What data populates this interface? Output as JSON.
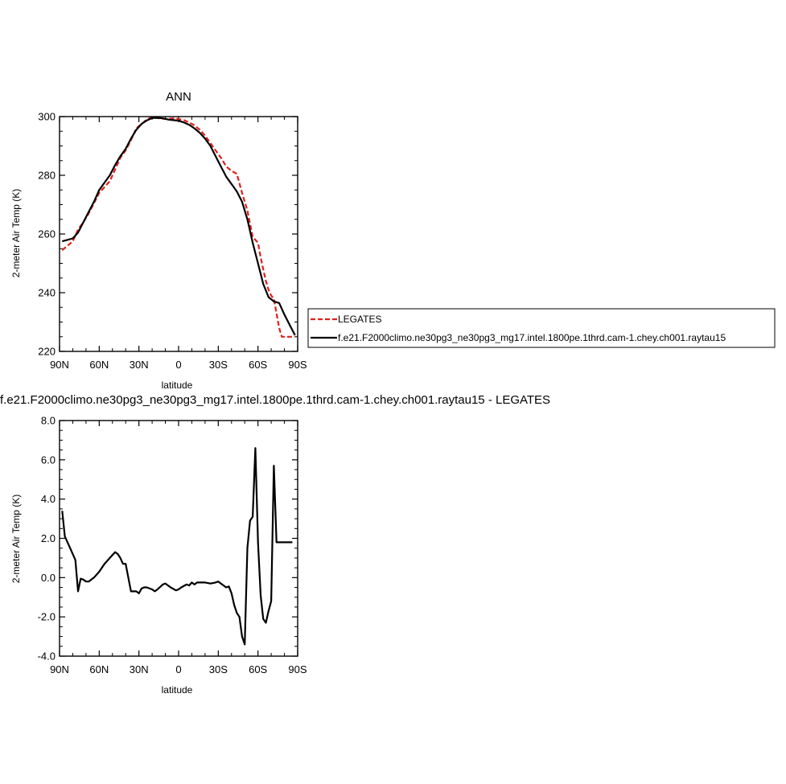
{
  "colors": {
    "obs": "#e0201b",
    "model": "#000000",
    "axis": "#000000"
  },
  "chart_data": [
    {
      "type": "line",
      "title": "ANN",
      "xlabel": "latitude",
      "ylabel": "2-meter Air Temp (K)",
      "xlim": [
        90,
        -90
      ],
      "ylim": [
        220,
        300
      ],
      "xticks": [
        90,
        60,
        30,
        0,
        -30,
        -60,
        -90
      ],
      "xtick_labels": [
        "90N",
        "60N",
        "30N",
        "0",
        "30S",
        "60S",
        "90S"
      ],
      "yticks": [
        220,
        240,
        260,
        280,
        300
      ],
      "ytick_labels": [
        "220",
        "240",
        "260",
        "280",
        "300"
      ],
      "legend": {
        "placement": "right",
        "entries": [
          "LEGATES",
          "f.e21.F2000climo.ne30pg3_ne30pg3_mg17.intel.1800pe.1thrd.cam-1.chey.ch001.raytau15"
        ]
      },
      "series": [
        {
          "name": "LEGATES",
          "style": "dashed",
          "color": "#e0201b",
          "x": [
            88,
            84,
            80,
            76,
            72,
            68,
            64,
            60,
            56,
            52,
            48,
            44,
            40,
            36,
            32,
            28,
            24,
            20,
            16,
            12,
            8,
            4,
            0,
            -4,
            -8,
            -12,
            -16,
            -20,
            -24,
            -28,
            -32,
            -36,
            -40,
            -44,
            -48,
            -52,
            -56,
            -60,
            -62,
            -64,
            -66,
            -68,
            -70,
            -72,
            -74,
            -76,
            -78,
            -80,
            -82,
            -84,
            -86,
            -88
          ],
          "y": [
            254.5,
            256.0,
            257.5,
            261.5,
            264.0,
            267.0,
            270.5,
            274.0,
            276.0,
            278.0,
            282.0,
            286.0,
            288.5,
            292.0,
            296.0,
            297.5,
            299.0,
            299.8,
            299.5,
            299.3,
            299.2,
            299.4,
            299.2,
            298.8,
            298.0,
            297.0,
            295.5,
            293.5,
            291.0,
            288.5,
            286.0,
            283.0,
            281.5,
            280.5,
            274.0,
            268.0,
            259.0,
            257.0,
            252.0,
            248.0,
            244.0,
            241.0,
            239.0,
            238.0,
            233.0,
            228.0,
            225.0,
            225.0,
            225.0,
            225.0,
            225.0,
            225.0
          ]
        },
        {
          "name": "f.e21.F2000climo.ne30pg3_ne30pg3_mg17.intel.1800pe.1thrd.cam-1.chey.ch001.raytau15",
          "style": "solid",
          "color": "#000000",
          "x": [
            88,
            84,
            80,
            76,
            72,
            68,
            64,
            60,
            56,
            52,
            48,
            44,
            40,
            36,
            32,
            28,
            24,
            20,
            16,
            12,
            8,
            4,
            0,
            -4,
            -8,
            -12,
            -16,
            -20,
            -24,
            -28,
            -32,
            -36,
            -40,
            -44,
            -48,
            -52,
            -56,
            -60,
            -64,
            -68,
            -72,
            -76,
            -80,
            -84,
            -88
          ],
          "y": [
            257.5,
            258.0,
            258.5,
            260.5,
            264.0,
            267.5,
            271.0,
            275.0,
            277.5,
            280.0,
            283.5,
            286.5,
            289.0,
            292.5,
            295.5,
            297.5,
            298.7,
            299.5,
            299.6,
            299.4,
            299.0,
            298.8,
            298.6,
            298.0,
            297.2,
            296.0,
            294.5,
            292.5,
            290.0,
            286.5,
            283.0,
            279.5,
            277.0,
            274.5,
            271.0,
            265.0,
            257.0,
            250.0,
            243.0,
            238.5,
            237.0,
            236.5,
            232.5,
            229.0,
            225.5
          ]
        }
      ]
    },
    {
      "type": "line",
      "title": "f.e21.F2000climo.ne30pg3_ne30pg3_mg17.intel.1800pe.1thrd.cam-1.chey.ch001.raytau15 - LEGATES",
      "xlabel": "latitude",
      "ylabel": "2-meter Air Temp (K)",
      "xlim": [
        90,
        -90
      ],
      "ylim": [
        -4,
        8
      ],
      "xticks": [
        90,
        60,
        30,
        0,
        -30,
        -60,
        -90
      ],
      "xtick_labels": [
        "90N",
        "60N",
        "30N",
        "0",
        "30S",
        "60S",
        "90S"
      ],
      "yticks": [
        -4,
        -2,
        0,
        2,
        4,
        6,
        8
      ],
      "ytick_labels": [
        "-4.0",
        "-2.0",
        "0.0",
        "2.0",
        "4.0",
        "6.0",
        "8.0"
      ],
      "series": [
        {
          "style": "solid",
          "color": "#000000",
          "x": [
            88,
            86,
            82,
            78,
            76,
            74,
            72,
            70,
            68,
            64,
            60,
            56,
            52,
            48,
            46,
            44,
            42,
            40,
            38,
            36,
            32,
            30,
            28,
            26,
            24,
            20,
            18,
            16,
            12,
            10,
            6,
            2,
            0,
            -2,
            -6,
            -8,
            -10,
            -12,
            -14,
            -16,
            -20,
            -24,
            -28,
            -30,
            -32,
            -36,
            -38,
            -40,
            -42,
            -44,
            -46,
            -48,
            -50,
            -52,
            -54,
            -56,
            -58,
            -60,
            -62,
            -64,
            -66,
            -68,
            -70,
            -72,
            -74,
            -76,
            -78,
            -80,
            -82,
            -84,
            -86
          ],
          "y": [
            3.4,
            2.1,
            1.5,
            0.9,
            -0.7,
            -0.05,
            -0.1,
            -0.2,
            -0.2,
            0.0,
            0.3,
            0.7,
            1.0,
            1.3,
            1.2,
            1.0,
            0.7,
            0.7,
            0.0,
            -0.7,
            -0.7,
            -0.8,
            -0.55,
            -0.5,
            -0.5,
            -0.6,
            -0.7,
            -0.6,
            -0.35,
            -0.3,
            -0.5,
            -0.65,
            -0.6,
            -0.5,
            -0.35,
            -0.4,
            -0.25,
            -0.35,
            -0.25,
            -0.25,
            -0.25,
            -0.3,
            -0.25,
            -0.2,
            -0.3,
            -0.5,
            -0.45,
            -0.8,
            -1.4,
            -1.8,
            -2.0,
            -3.0,
            -3.4,
            1.5,
            2.9,
            3.1,
            6.6,
            1.8,
            -0.9,
            -2.1,
            -2.3,
            -1.7,
            -1.2,
            5.7,
            1.8,
            1.8,
            1.8,
            1.8,
            1.8,
            1.8,
            1.8
          ]
        }
      ]
    }
  ]
}
